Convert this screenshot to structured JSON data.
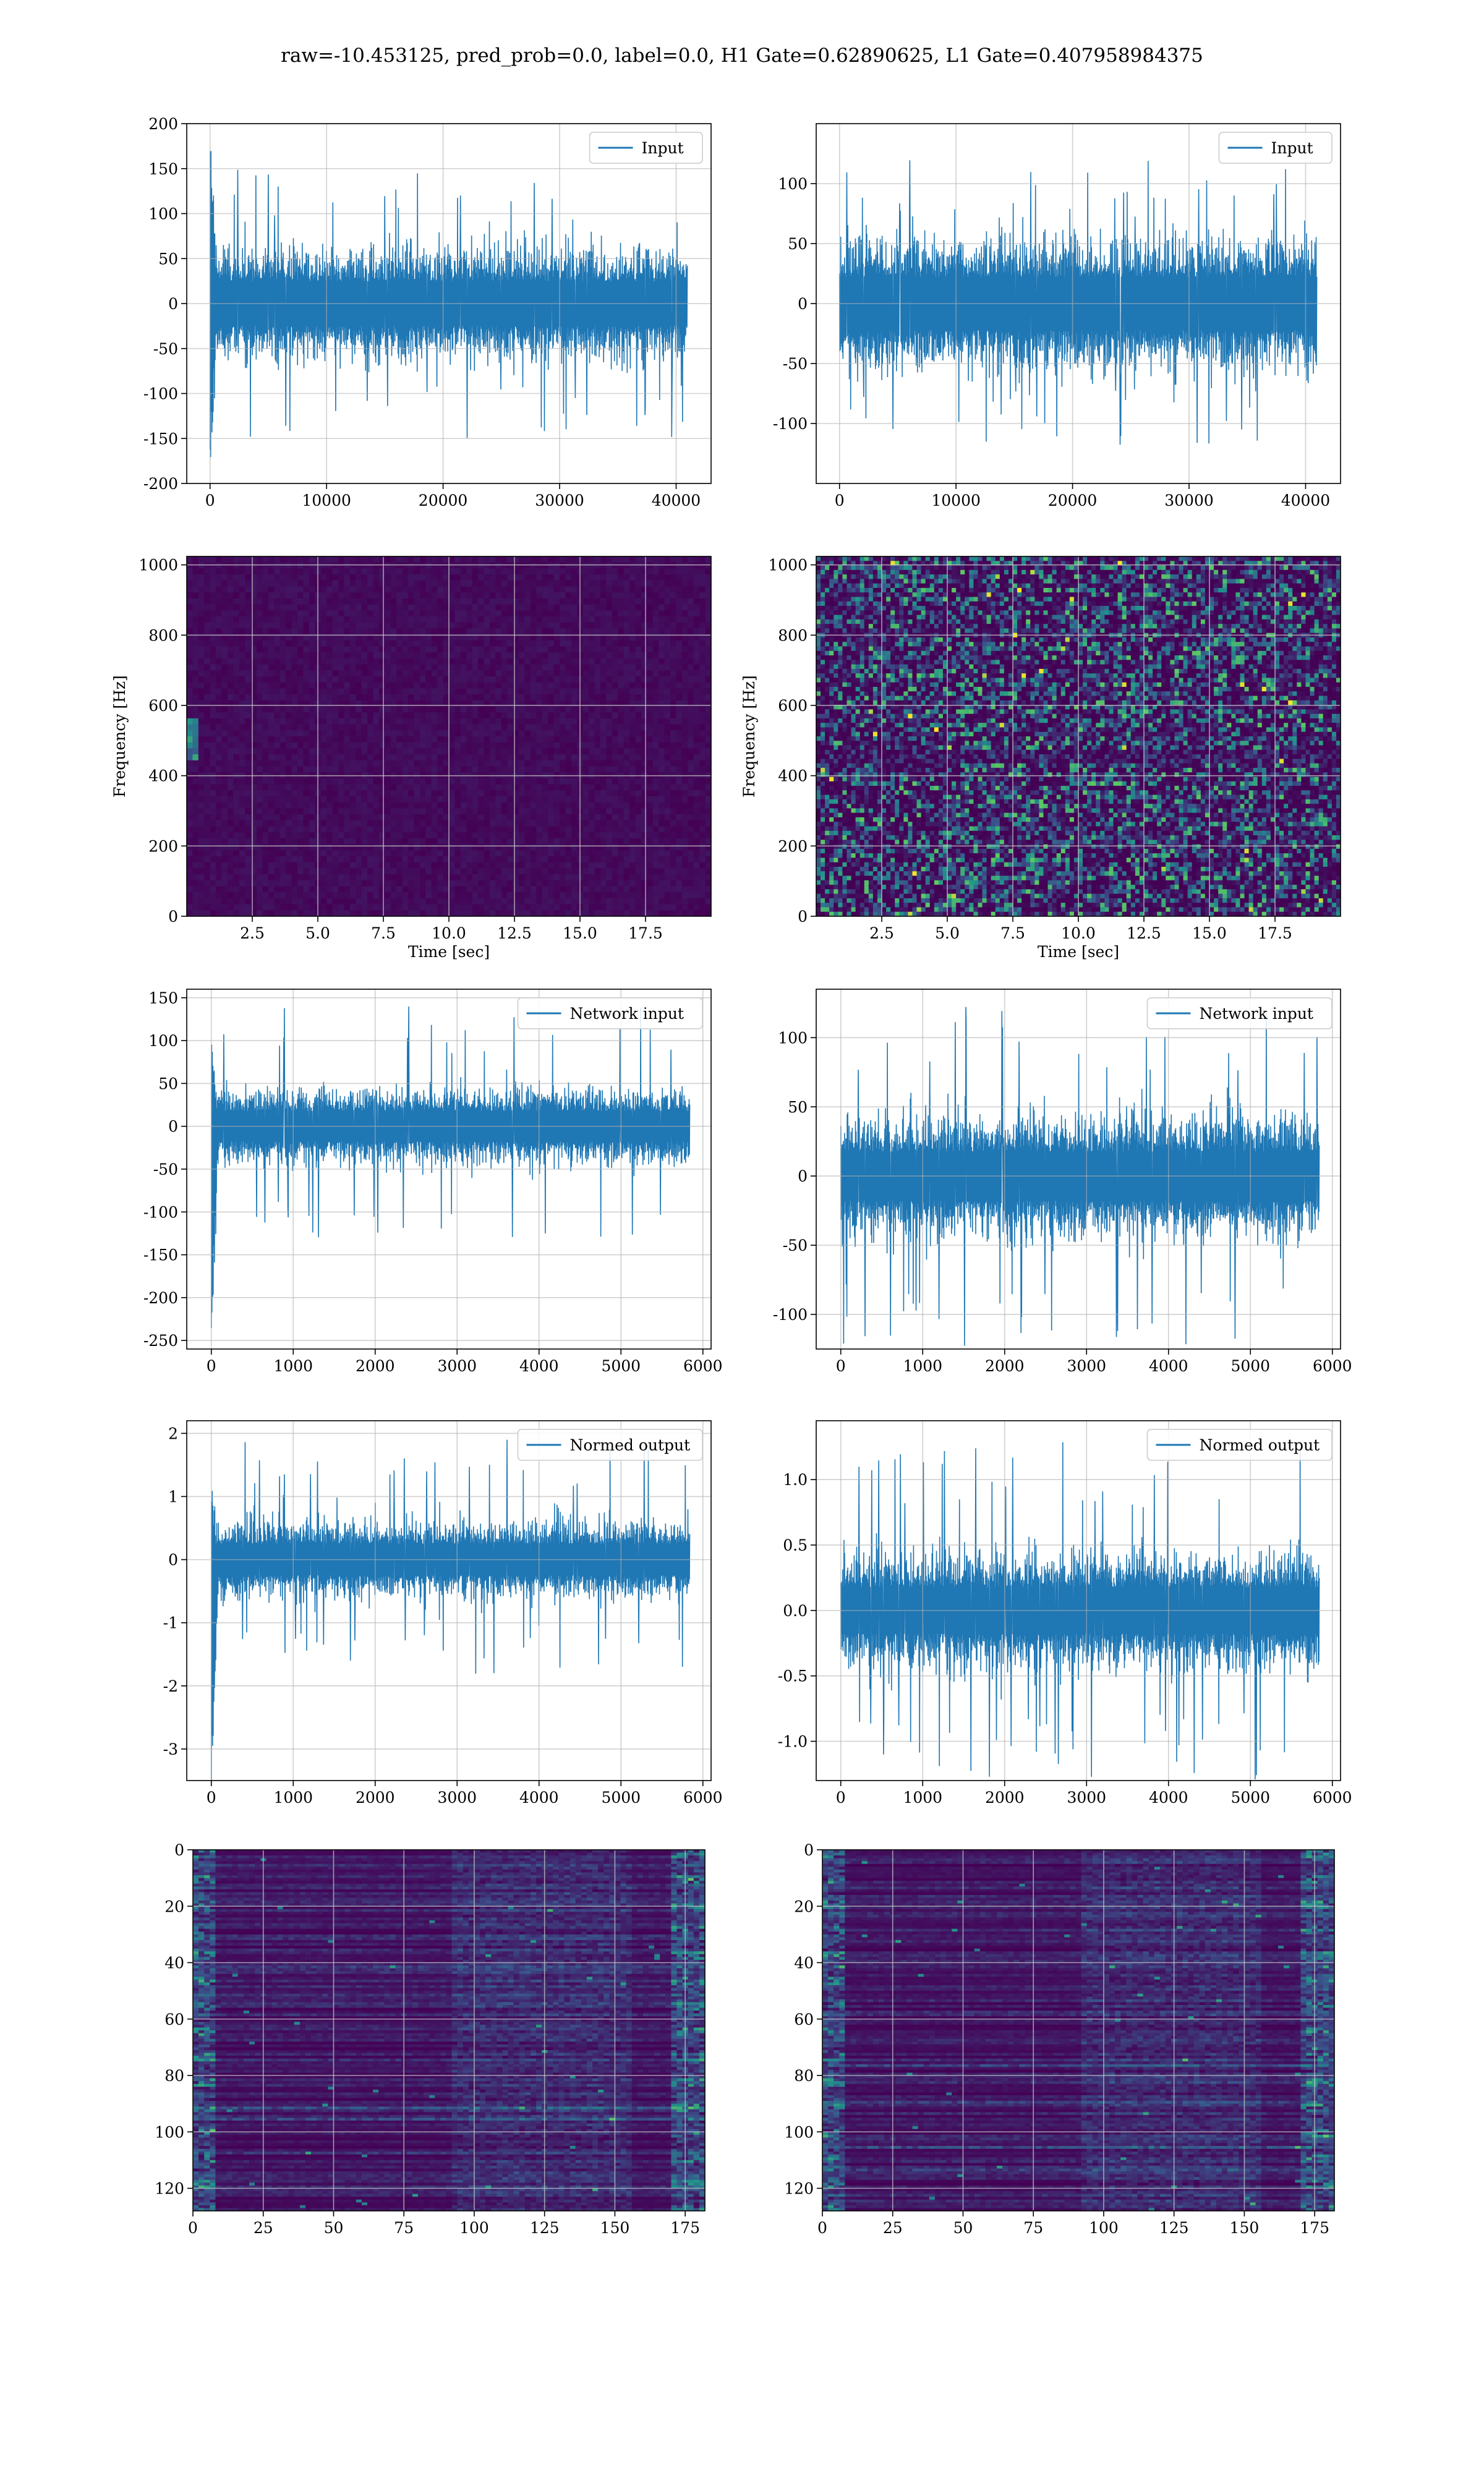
{
  "figure": {
    "title": "raw=-10.453125, pred_prob=0.0, label=0.0, H1 Gate=0.62890625, L1 Gate=0.407958984375"
  },
  "colors": {
    "series": "#1f77b4",
    "grid": "#b0b0b0",
    "heat_low": "#440154",
    "heat_high": "#fde725"
  },
  "chart_data": [
    {
      "id": "raw-h1",
      "type": "line",
      "legend": "Input",
      "legend_loc": "upper-right",
      "grid": true,
      "xlim": [
        -2000,
        43000
      ],
      "ylim": [
        -200,
        200
      ],
      "xticks": [
        0,
        10000,
        20000,
        30000,
        40000
      ],
      "yticks": [
        -200,
        -150,
        -100,
        -50,
        0,
        50,
        100,
        150,
        200
      ],
      "x_range": [
        0,
        40960
      ],
      "y_noise_amplitude": 45,
      "y_spike_max": 150,
      "y_start_transient": [
        -180,
        185
      ]
    },
    {
      "id": "raw-l1",
      "type": "line",
      "legend": "Input",
      "legend_loc": "upper-right",
      "grid": true,
      "xlim": [
        -2000,
        43000
      ],
      "ylim": [
        -150,
        150
      ],
      "xticks": [
        0,
        10000,
        20000,
        30000,
        40000
      ],
      "yticks": [
        -100,
        -50,
        0,
        50,
        100
      ],
      "x_range": [
        0,
        40960
      ],
      "y_noise_amplitude": 40,
      "y_spike_max": 120
    },
    {
      "id": "spec-h1",
      "type": "heatmap",
      "xlabel": "Time [sec]",
      "ylabel": "Frequency [Hz]",
      "grid": true,
      "xlim": [
        0,
        20
      ],
      "ylim": [
        0,
        1024
      ],
      "xticks": [
        2.5,
        5.0,
        7.5,
        10.0,
        12.5,
        15.0,
        17.5
      ],
      "yticks": [
        0,
        200,
        400,
        600,
        800,
        1000
      ],
      "intensity": "low"
    },
    {
      "id": "spec-l1",
      "type": "heatmap",
      "xlabel": "Time [sec]",
      "ylabel": "Frequency [Hz]",
      "grid": true,
      "xlim": [
        0,
        20
      ],
      "ylim": [
        0,
        1024
      ],
      "xticks": [
        2.5,
        5.0,
        7.5,
        10.0,
        12.5,
        15.0,
        17.5
      ],
      "yticks": [
        0,
        200,
        400,
        600,
        800,
        1000
      ],
      "intensity": "speckled"
    },
    {
      "id": "net-h1",
      "type": "line",
      "legend": "Network input",
      "legend_loc": "upper-right",
      "grid": true,
      "xlim": [
        -300,
        6100
      ],
      "ylim": [
        -260,
        160
      ],
      "xticks": [
        0,
        1000,
        2000,
        3000,
        4000,
        5000,
        6000
      ],
      "yticks": [
        -250,
        -200,
        -150,
        -100,
        -50,
        0,
        50,
        100,
        150
      ],
      "x_range": [
        0,
        5840
      ],
      "y_noise_amplitude": 32,
      "y_spike_max": 140,
      "y_start_transient": [
        -240,
        95
      ]
    },
    {
      "id": "net-l1",
      "type": "line",
      "legend": "Network input",
      "legend_loc": "upper-right",
      "grid": true,
      "xlim": [
        -300,
        6100
      ],
      "ylim": [
        -125,
        135
      ],
      "xticks": [
        0,
        1000,
        2000,
        3000,
        4000,
        5000,
        6000
      ],
      "yticks": [
        -100,
        -50,
        0,
        50,
        100
      ],
      "x_range": [
        0,
        5840
      ],
      "y_noise_amplitude": 32,
      "y_spike_max": 125
    },
    {
      "id": "norm-h1",
      "type": "line",
      "legend": "Normed output",
      "legend_loc": "upper-right",
      "grid": true,
      "xlim": [
        -300,
        6100
      ],
      "ylim": [
        -3.5,
        2.2
      ],
      "xticks": [
        0,
        1000,
        2000,
        3000,
        4000,
        5000,
        6000
      ],
      "yticks": [
        -3,
        -2,
        -1,
        0,
        1,
        2
      ],
      "x_range": [
        0,
        5840
      ],
      "y_noise_amplitude": 0.45,
      "y_spike_max": 1.9,
      "y_start_transient": [
        -3.3,
        1.1
      ]
    },
    {
      "id": "norm-l1",
      "type": "line",
      "legend": "Normed output",
      "legend_loc": "upper-right",
      "grid": true,
      "xlim": [
        -300,
        6100
      ],
      "ylim": [
        -1.3,
        1.45
      ],
      "xticks": [
        0,
        1000,
        2000,
        3000,
        4000,
        5000,
        6000
      ],
      "yticks": [
        -1.0,
        -0.5,
        0.0,
        0.5,
        1.0
      ],
      "x_range": [
        0,
        5840
      ],
      "y_noise_amplitude": 0.32,
      "y_spike_max": 1.3
    },
    {
      "id": "feat-h1",
      "type": "heatmap",
      "grid": true,
      "y_inverted": true,
      "xlim": [
        0,
        182
      ],
      "ylim": [
        0,
        128
      ],
      "xticks": [
        0,
        25,
        50,
        75,
        100,
        125,
        150,
        175
      ],
      "yticks": [
        0,
        20,
        40,
        60,
        80,
        100,
        120
      ],
      "intensity": "striped"
    },
    {
      "id": "feat-l1",
      "type": "heatmap",
      "grid": true,
      "y_inverted": true,
      "xlim": [
        0,
        182
      ],
      "ylim": [
        0,
        128
      ],
      "xticks": [
        0,
        25,
        50,
        75,
        100,
        125,
        150,
        175
      ],
      "yticks": [
        0,
        20,
        40,
        60,
        80,
        100,
        120
      ],
      "intensity": "striped"
    }
  ]
}
